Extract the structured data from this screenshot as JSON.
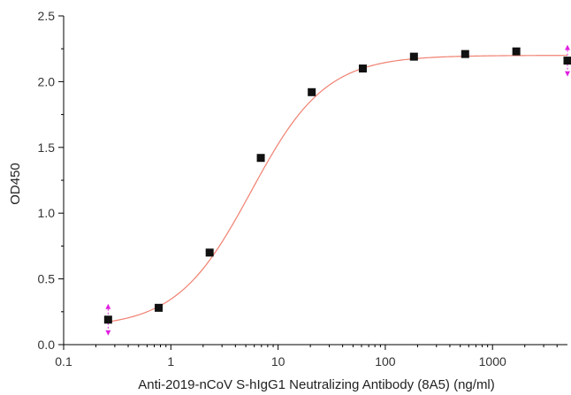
{
  "chart_data": {
    "type": "scatter",
    "title": "",
    "xlabel": "Anti-2019-nCoV S-hIgG1 Neutralizing Antibody (8A5) (ng/ml)",
    "ylabel": "OD450",
    "x_scale": "log",
    "xlim": [
      0.1,
      5000
    ],
    "ylim": [
      0.0,
      2.5
    ],
    "x_ticks": [
      0.1,
      1,
      10,
      100,
      1000
    ],
    "x_tick_labels": [
      "0.1",
      "1",
      "10",
      "100",
      "1000"
    ],
    "y_ticks": [
      0.0,
      0.5,
      1.0,
      1.5,
      2.0,
      2.5
    ],
    "y_tick_labels": [
      "0.0",
      "0.5",
      "1.0",
      "1.5",
      "2.0",
      "2.5"
    ],
    "grid": false,
    "legend": "none",
    "series": [
      {
        "x": [
          0.26,
          0.77,
          2.3,
          6.9,
          20.6,
          61.7,
          185,
          556,
          1667,
          5000
        ],
        "y": [
          0.19,
          0.28,
          0.7,
          1.42,
          1.92,
          2.1,
          2.19,
          2.21,
          2.23,
          2.16
        ],
        "marker": "square",
        "color": "#111111"
      }
    ],
    "fit_curve": {
      "model": "4PL",
      "bottom": 0.13,
      "top": 2.2,
      "ec50": 5.6,
      "hill": 1.25,
      "color": "#f08070"
    },
    "error_markers_color": "#e020e0"
  }
}
